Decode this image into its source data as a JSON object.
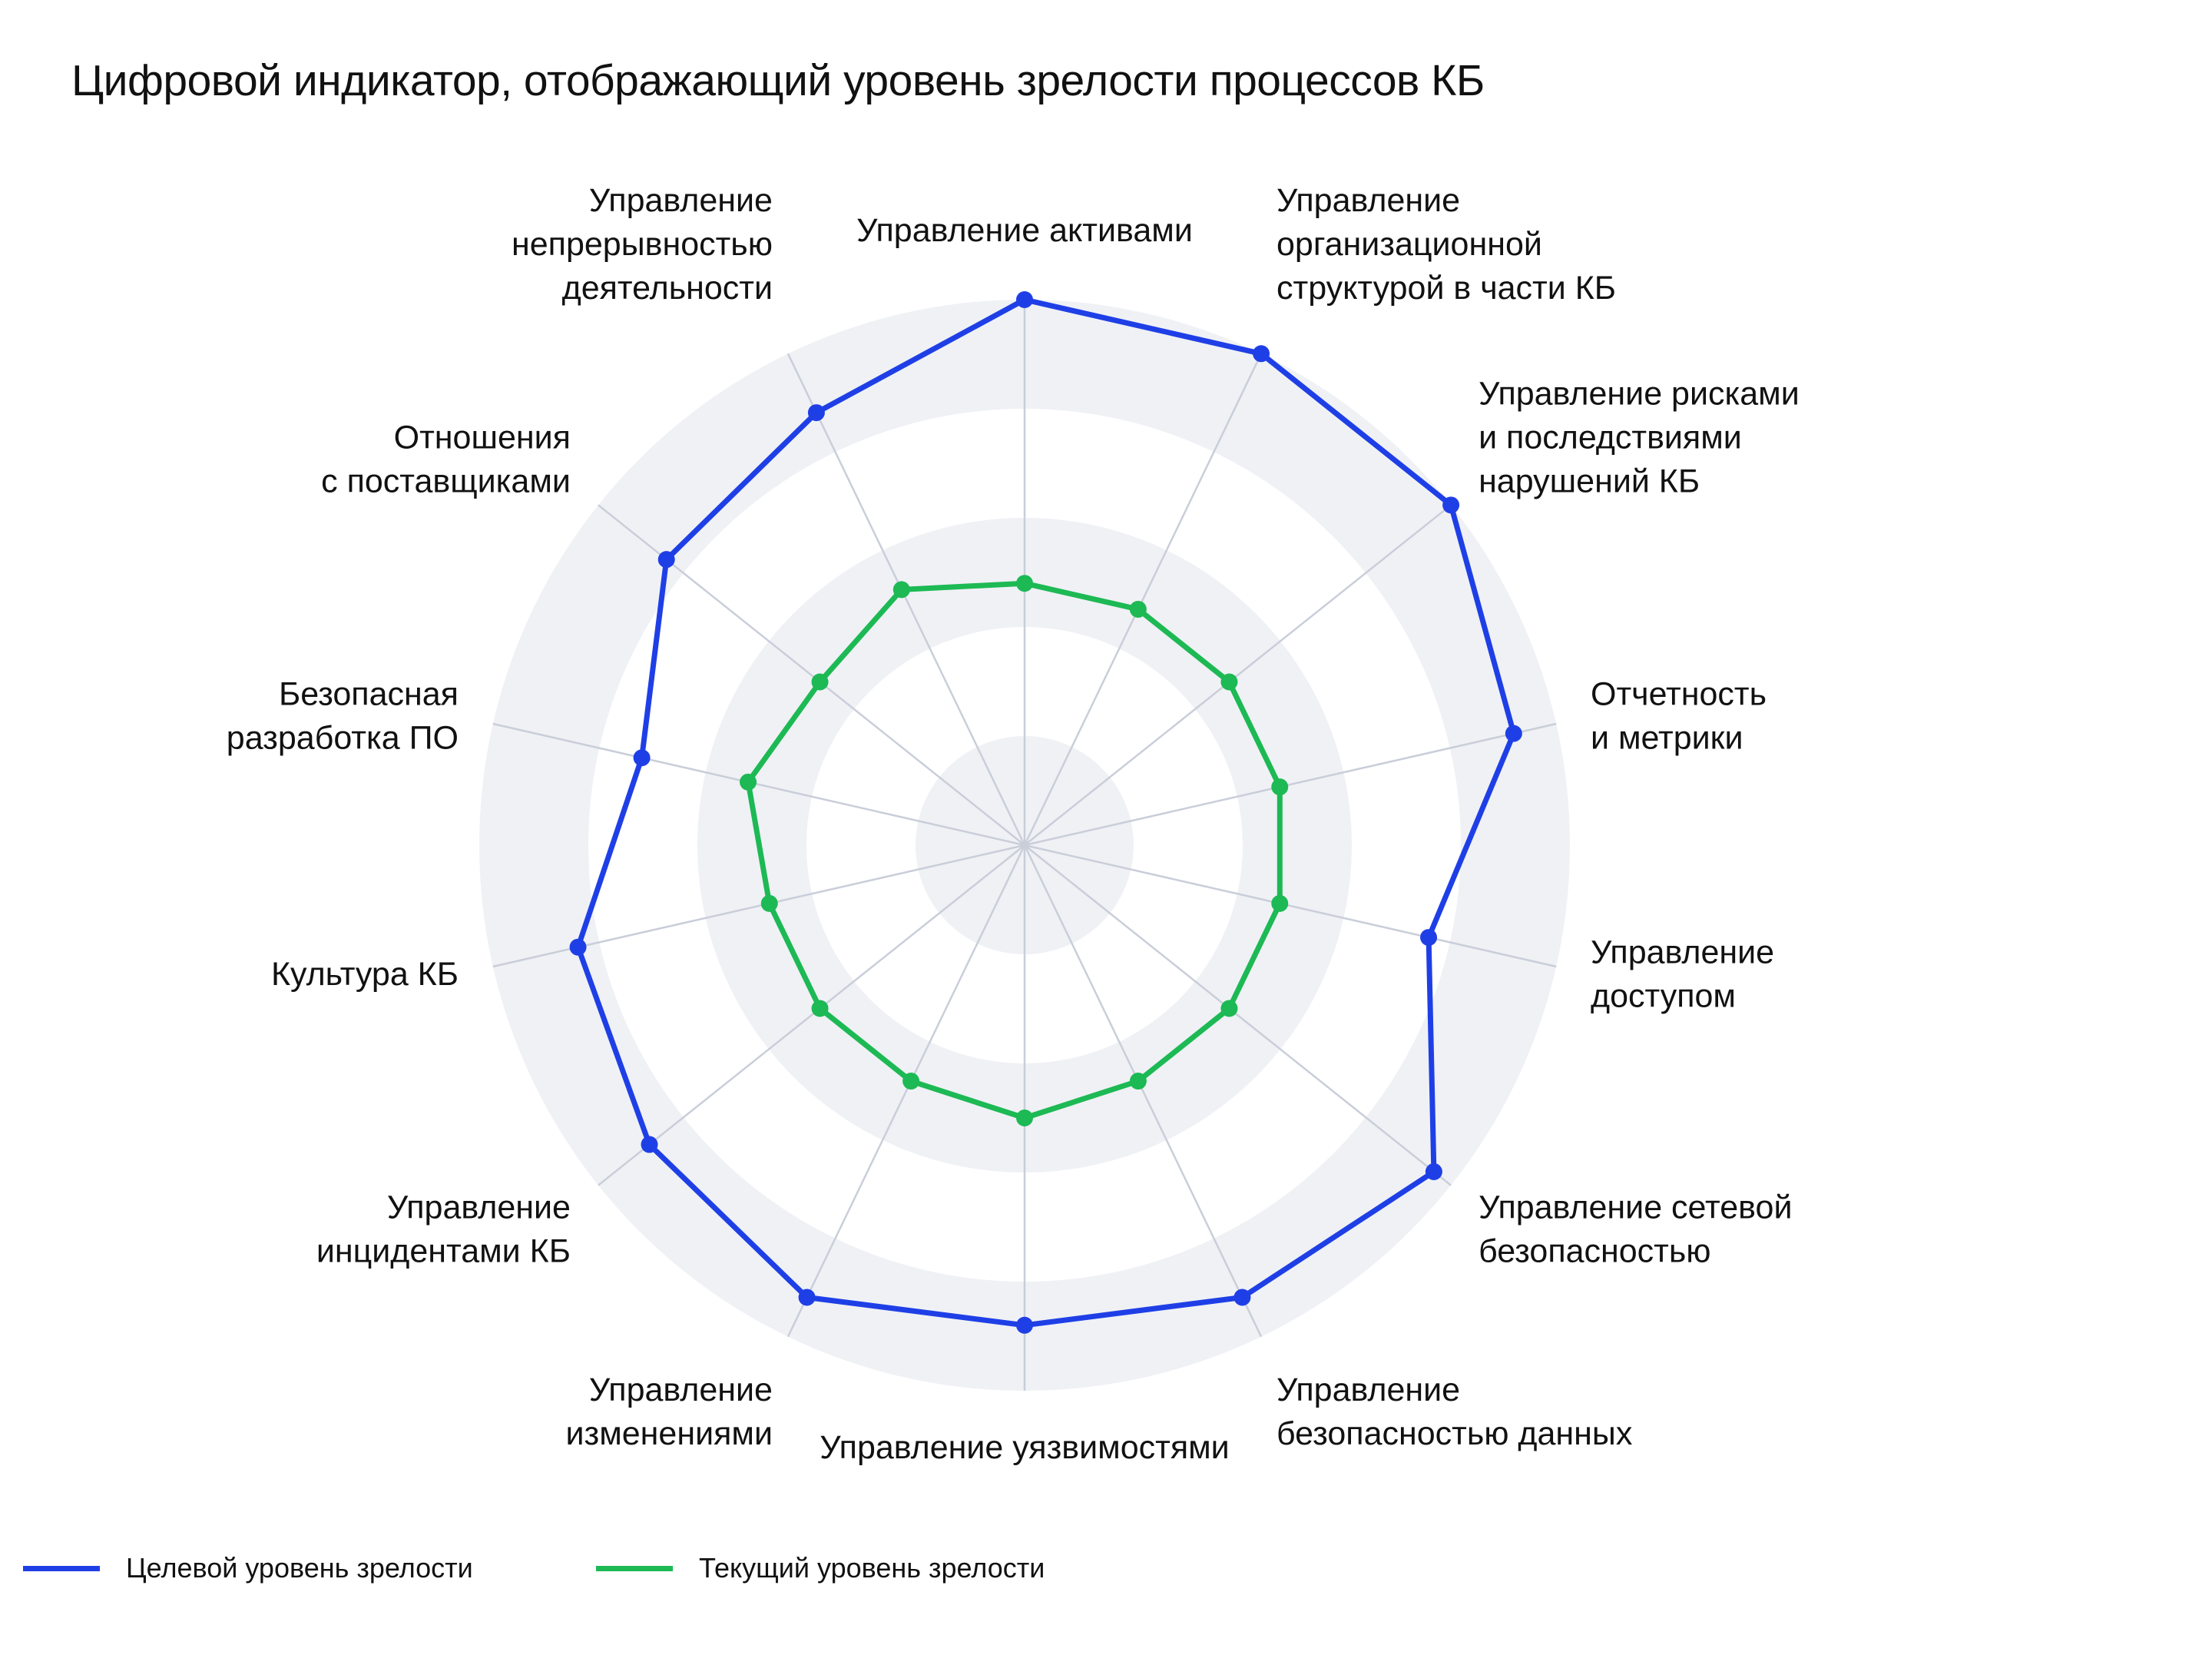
{
  "chart_data": {
    "type": "radar",
    "title": "Цифровой индикатор, отображающий уровень зрелости процессов КБ",
    "axes": [
      {
        "lines": [
          "Управление активами"
        ]
      },
      {
        "lines": [
          "Управление",
          "организационной",
          "структурой в части КБ"
        ]
      },
      {
        "lines": [
          "Управление рисками",
          "и последствиями",
          "нарушений КБ"
        ]
      },
      {
        "lines": [
          "Отчетность",
          "и метрики"
        ]
      },
      {
        "lines": [
          "Управление",
          "доступом"
        ]
      },
      {
        "lines": [
          "Управление сетевой",
          "безопасностью"
        ]
      },
      {
        "lines": [
          "Управление",
          "безопасностью данных"
        ]
      },
      {
        "lines": [
          "Управление уязвимостями"
        ]
      },
      {
        "lines": [
          "Управление",
          "изменениями"
        ]
      },
      {
        "lines": [
          "Управление",
          "инцидентами КБ"
        ]
      },
      {
        "lines": [
          "Культура КБ"
        ]
      },
      {
        "lines": [
          "Безопасная",
          "разработка ПО"
        ]
      },
      {
        "lines": [
          "Отношения",
          "с поставщиками"
        ]
      },
      {
        "lines": [
          "Управление",
          "непрерывностью",
          "деятельности"
        ]
      }
    ],
    "rlim": [
      0,
      5
    ],
    "ring_levels": [
      1,
      2,
      3,
      4,
      5
    ],
    "series": [
      {
        "name": "Целевой уровень зрелости",
        "color": "#1f3fe6",
        "values": [
          5.0,
          5.0,
          5.0,
          4.6,
          3.8,
          4.8,
          4.6,
          4.4,
          4.6,
          4.4,
          4.2,
          3.6,
          4.2,
          4.4
        ]
      },
      {
        "name": "Текущий уровень зрелости",
        "color": "#1db954",
        "values": [
          2.4,
          2.4,
          2.4,
          2.4,
          2.4,
          2.4,
          2.4,
          2.5,
          2.4,
          2.4,
          2.4,
          2.6,
          2.4,
          2.6
        ]
      }
    ],
    "colors": {
      "band": "#eff1f5",
      "spoke": "#c9ced9"
    },
    "legend_position": "bottom-left"
  }
}
